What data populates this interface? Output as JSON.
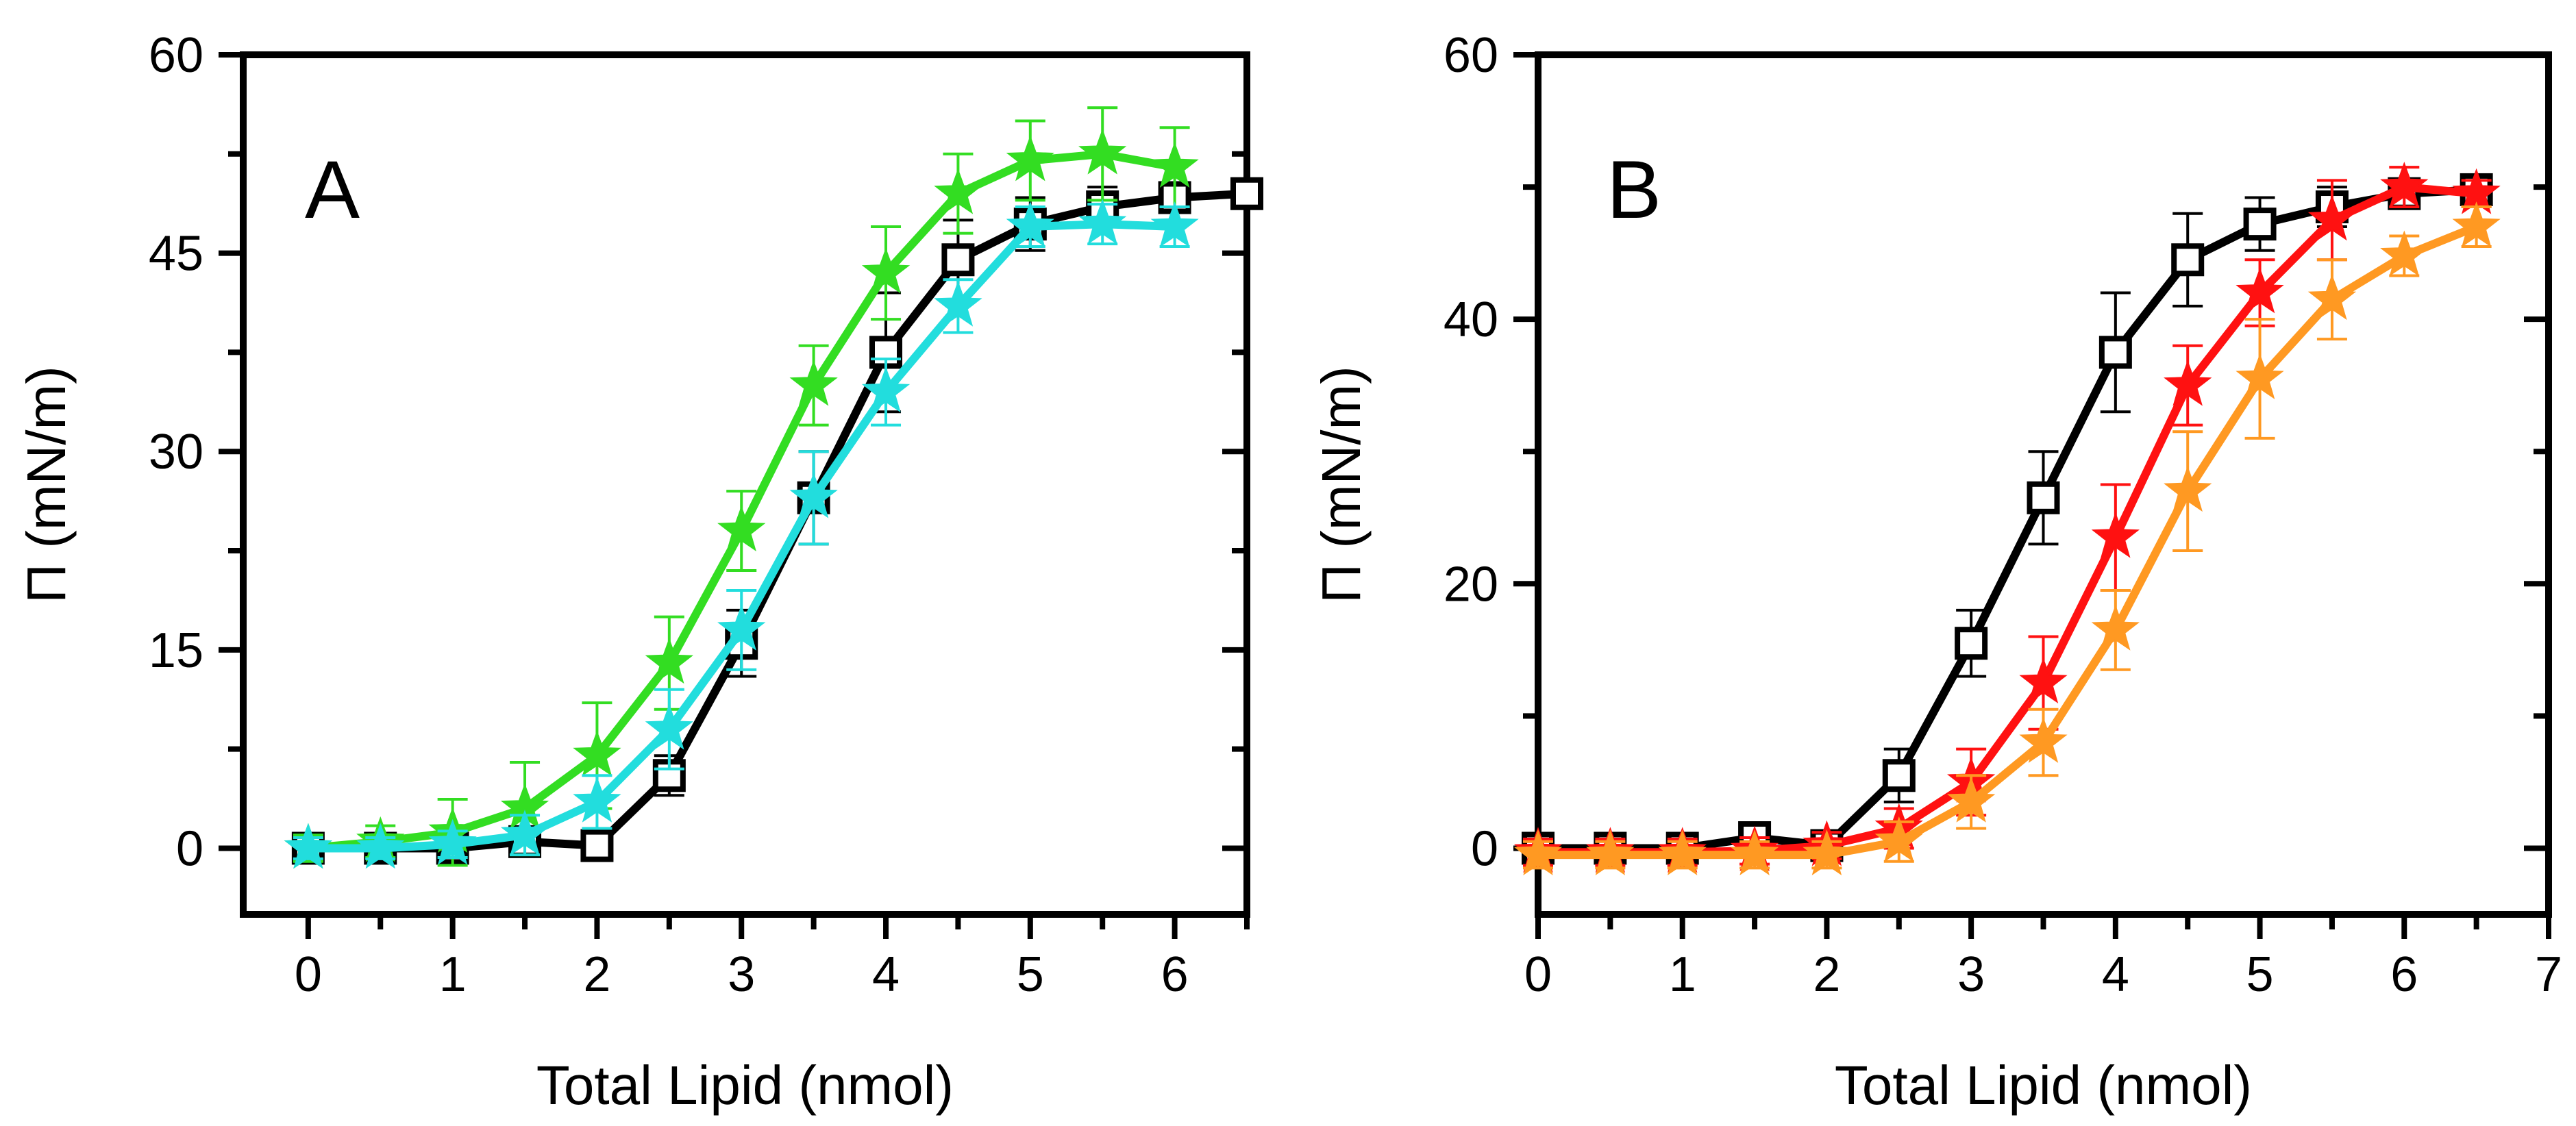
{
  "chart_data": [
    {
      "type": "line",
      "panel_label": "A",
      "xlabel": "Total Lipid (nmol)",
      "ylabel": "Π (mN/m)",
      "xlim": [
        -0.45,
        6.5
      ],
      "ylim": [
        -5,
        60
      ],
      "xticks": [
        0,
        1,
        2,
        3,
        4,
        5,
        6
      ],
      "xtick_labels": [
        "0",
        "1",
        "2",
        "3",
        "4",
        "5",
        "6"
      ],
      "yticks": [
        0,
        15,
        30,
        45,
        60
      ],
      "ytick_labels": [
        "0",
        "15",
        "30",
        "45",
        "60"
      ],
      "series": [
        {
          "name": "black squares",
          "color": "#000000",
          "marker": "square",
          "line_style": "solid",
          "x": [
            0,
            0.5,
            1,
            1.5,
            2,
            2.5,
            3,
            3.5,
            4,
            4.5,
            5,
            5.5,
            6,
            6.5
          ],
          "y": [
            0,
            0,
            0,
            0.5,
            0.2,
            5.5,
            15.5,
            26.5,
            37.5,
            44.5,
            47.2,
            48.5,
            49.2,
            49.5
          ],
          "err": [
            1,
            1,
            1,
            1,
            1,
            1.5,
            2.5,
            3.5,
            4.5,
            3,
            2,
            1.5,
            1,
            1
          ]
        },
        {
          "name": "green stars",
          "color": "#33dd22",
          "marker": "star",
          "line_style": "solid",
          "x": [
            0,
            0.5,
            1,
            1.5,
            2,
            2.5,
            3,
            3.5,
            4,
            4.5,
            5,
            5.5,
            6
          ],
          "y": [
            0,
            0.5,
            1.2,
            3,
            7,
            14,
            24,
            35,
            43.5,
            49.5,
            52,
            52.5,
            51.5
          ],
          "err": [
            1,
            1.2,
            2.5,
            3.5,
            4,
            3.5,
            3,
            3,
            3.5,
            3,
            3,
            3.5,
            3
          ]
        },
        {
          "name": "cyan stars",
          "color": "#22dddd",
          "marker": "star",
          "line_style": "solid",
          "x": [
            0,
            0.5,
            1,
            1.5,
            2,
            2.5,
            3,
            3.5,
            4,
            4.5,
            5,
            5.5,
            6
          ],
          "y": [
            0,
            0,
            0.3,
            1,
            3.5,
            9,
            16.5,
            26.5,
            34.5,
            41,
            47,
            47.2,
            47
          ],
          "err": [
            0.8,
            0.8,
            1,
            1.5,
            2,
            3,
            3,
            3.5,
            2.5,
            2,
            1.5,
            1.5,
            1.5
          ]
        }
      ]
    },
    {
      "type": "line",
      "panel_label": "B",
      "xlabel": "Total Lipid (nmol)",
      "ylabel": "Π (mN/m)",
      "xlim": [
        0,
        7
      ],
      "ylim": [
        -5,
        60
      ],
      "xticks": [
        0,
        1,
        2,
        3,
        4,
        5,
        6,
        7
      ],
      "xtick_labels": [
        "0",
        "1",
        "2",
        "3",
        "4",
        "5",
        "6",
        "7"
      ],
      "yticks": [
        0,
        20,
        40,
        60
      ],
      "ytick_labels": [
        "0",
        "20",
        "40",
        "60"
      ],
      "series": [
        {
          "name": "black squares",
          "color": "#000000",
          "marker": "square",
          "line_style": "solid",
          "x": [
            0,
            0.5,
            1,
            1.5,
            2,
            2.5,
            3,
            3.5,
            4,
            4.5,
            5,
            5.5,
            6,
            6.5
          ],
          "y": [
            0,
            0,
            0,
            0.8,
            0.2,
            5.5,
            15.5,
            26.5,
            37.5,
            44.5,
            47.2,
            48.5,
            49.5,
            49.8
          ],
          "err": [
            0.8,
            0.8,
            0.8,
            1,
            1,
            2,
            2.5,
            3.5,
            4.5,
            3.5,
            2,
            1.5,
            1,
            1
          ]
        },
        {
          "name": "red stars",
          "color": "#ff1111",
          "marker": "star",
          "line_style": "solid",
          "x": [
            0,
            0.5,
            1,
            1.5,
            2,
            2.5,
            3,
            3.5,
            4,
            4.5,
            5,
            5.5,
            6,
            6.5
          ],
          "y": [
            -0.3,
            -0.3,
            -0.3,
            -0.2,
            0.2,
            1.5,
            5,
            12.5,
            23.5,
            35,
            42,
            47.5,
            50,
            49.5
          ],
          "err": [
            1,
            1,
            1,
            1,
            1,
            1.5,
            2.5,
            3.5,
            4,
            3,
            2.5,
            3,
            1.5,
            1
          ]
        },
        {
          "name": "orange stars",
          "color": "#ff9922",
          "marker": "star",
          "line_style": "solid",
          "x": [
            0,
            0.5,
            1,
            1.5,
            2,
            2.5,
            3,
            3.5,
            4,
            4.5,
            5,
            5.5,
            6,
            6.5
          ],
          "y": [
            -0.5,
            -0.5,
            -0.5,
            -0.5,
            -0.5,
            0.5,
            3.5,
            8,
            16.5,
            27,
            35.5,
            41.5,
            44.8,
            47
          ],
          "err": [
            1,
            1,
            1,
            1,
            1,
            1.5,
            2,
            2.5,
            3,
            4.5,
            4.5,
            3,
            1.5,
            1.5
          ]
        }
      ]
    }
  ]
}
